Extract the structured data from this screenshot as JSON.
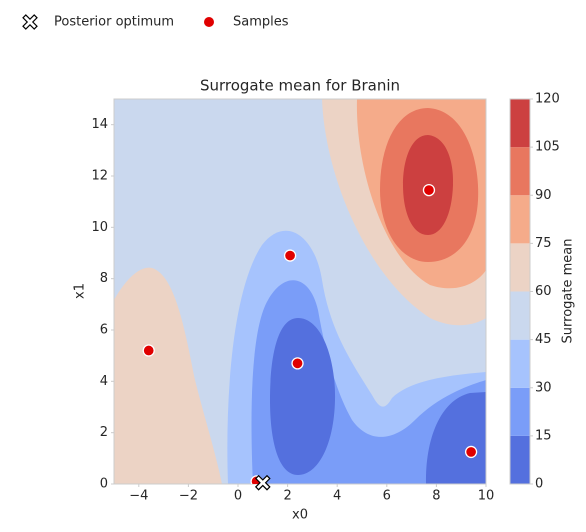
{
  "chart_data": {
    "type": "contour",
    "title": "Surrogate mean for Branin",
    "xlabel": "x0",
    "ylabel": "x1",
    "xlim": [
      -5,
      10
    ],
    "ylim": [
      0,
      15
    ],
    "xticks": [
      {
        "value": -4,
        "label": "−4"
      },
      {
        "value": -2,
        "label": "−2"
      },
      0,
      2,
      4,
      6,
      8,
      10
    ],
    "yticks": [
      0,
      2,
      4,
      6,
      8,
      10,
      12,
      14
    ],
    "levels": [
      0,
      15,
      30,
      45,
      60,
      75,
      90,
      105,
      120
    ],
    "level_colors": [
      "#5470de",
      "#7a9df8",
      "#a6c3fd",
      "#cad8ee",
      "#ecd3c5",
      "#f5ab8a",
      "#e8775f",
      "#cc4040"
    ],
    "colorbar_label": "Surrogate mean",
    "series": [
      {
        "name": "Posterior optimum",
        "marker": "X",
        "color": "#ffffff",
        "x": [
          1.0
        ],
        "y": [
          0.05
        ]
      },
      {
        "name": "Samples",
        "marker": "o",
        "color": "#e00000",
        "x": [
          -3.6,
          2.1,
          2.4,
          7.7,
          9.4,
          0.75
        ],
        "y": [
          5.2,
          8.9,
          4.7,
          11.45,
          1.25,
          0.1
        ]
      }
    ]
  }
}
